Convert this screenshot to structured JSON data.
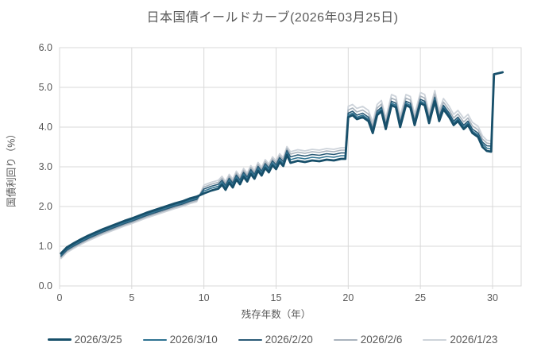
{
  "colors": {
    "text": "#595959",
    "grid": "#d9d9d9",
    "background": "#ffffff"
  },
  "chart_data": {
    "type": "line",
    "title": "日本国債イールドカーブ(2026年03月25日)",
    "xlabel": "残存年数（年）",
    "ylabel": "国債利回り（%）",
    "xlim": [
      0,
      32
    ],
    "ylim": [
      0,
      6
    ],
    "x_ticks": [
      0,
      5,
      10,
      15,
      20,
      25,
      30
    ],
    "y_ticks": [
      "0.0",
      "1.0",
      "2.0",
      "3.0",
      "4.0",
      "5.0",
      "6.0"
    ],
    "grid": true,
    "legend_position": "bottom",
    "x": [
      0.1,
      0.5,
      1,
      1.5,
      2,
      2.5,
      3,
      3.5,
      4,
      4.5,
      5,
      5.5,
      6,
      6.5,
      7,
      7.5,
      8,
      8.5,
      9,
      9.5,
      10,
      10.5,
      11,
      11.25,
      11.5,
      11.75,
      12,
      12.25,
      12.5,
      12.75,
      13,
      13.25,
      13.5,
      13.75,
      14,
      14.25,
      14.5,
      14.75,
      15,
      15.25,
      15.5,
      15.75,
      16,
      16.5,
      17,
      17.5,
      18,
      18.5,
      19,
      19.5,
      19.8,
      20,
      20.3,
      20.6,
      21,
      21.4,
      21.7,
      22,
      22.3,
      22.6,
      23,
      23.3,
      23.6,
      24,
      24.3,
      24.6,
      25,
      25.3,
      25.6,
      26,
      26.3,
      26.6,
      27,
      27.3,
      27.6,
      28,
      28.3,
      28.6,
      29,
      29.3,
      29.6,
      29.9,
      30.1,
      30.7
    ],
    "series": [
      {
        "name": "2026/3/25",
        "color": "#174f6a",
        "width": 2.8,
        "values": [
          0.82,
          0.97,
          1.08,
          1.18,
          1.27,
          1.35,
          1.43,
          1.5,
          1.57,
          1.64,
          1.7,
          1.77,
          1.84,
          1.9,
          1.96,
          2.02,
          2.08,
          2.13,
          2.2,
          2.25,
          2.33,
          2.4,
          2.45,
          2.55,
          2.42,
          2.6,
          2.48,
          2.68,
          2.56,
          2.75,
          2.63,
          2.82,
          2.7,
          2.9,
          2.78,
          2.97,
          2.86,
          3.04,
          2.94,
          3.12,
          3.02,
          3.3,
          3.1,
          3.15,
          3.12,
          3.16,
          3.14,
          3.18,
          3.16,
          3.2,
          3.2,
          4.25,
          4.3,
          4.2,
          4.25,
          4.15,
          3.85,
          4.3,
          4.4,
          3.95,
          4.55,
          4.5,
          4.0,
          4.55,
          4.5,
          4.05,
          4.6,
          4.55,
          4.1,
          4.65,
          4.15,
          4.45,
          4.25,
          4.05,
          4.15,
          3.95,
          4.05,
          3.85,
          3.75,
          3.5,
          3.4,
          3.38,
          5.33,
          5.38
        ]
      },
      {
        "name": "2026/3/10",
        "color": "#2f7392",
        "width": 1.6,
        "values": [
          0.78,
          0.93,
          1.04,
          1.14,
          1.23,
          1.31,
          1.39,
          1.46,
          1.53,
          1.6,
          1.66,
          1.73,
          1.8,
          1.86,
          1.92,
          1.98,
          2.04,
          2.09,
          2.16,
          2.21,
          2.39,
          2.46,
          2.51,
          2.61,
          2.48,
          2.66,
          2.54,
          2.74,
          2.62,
          2.81,
          2.69,
          2.88,
          2.76,
          2.96,
          2.84,
          3.03,
          2.92,
          3.1,
          3.0,
          3.18,
          3.08,
          3.36,
          3.18,
          3.23,
          3.2,
          3.24,
          3.22,
          3.26,
          3.24,
          3.28,
          3.28,
          4.3,
          4.35,
          4.25,
          4.3,
          4.2,
          3.9,
          4.35,
          4.45,
          4.0,
          4.6,
          4.55,
          4.05,
          4.6,
          4.55,
          4.1,
          4.65,
          4.6,
          4.15,
          4.7,
          4.2,
          4.5,
          4.3,
          4.1,
          4.2,
          4.0,
          4.1,
          3.9,
          3.8,
          3.57,
          3.47,
          3.45,
          null,
          null
        ]
      },
      {
        "name": "2026/2/20",
        "color": "#2b5b77",
        "width": 1.6,
        "values": [
          0.75,
          0.9,
          1.01,
          1.11,
          1.2,
          1.28,
          1.36,
          1.43,
          1.5,
          1.57,
          1.63,
          1.7,
          1.77,
          1.83,
          1.89,
          1.95,
          2.01,
          2.06,
          2.13,
          2.18,
          2.44,
          2.51,
          2.56,
          2.66,
          2.53,
          2.71,
          2.59,
          2.79,
          2.67,
          2.86,
          2.74,
          2.93,
          2.81,
          3.01,
          2.89,
          3.08,
          2.97,
          3.15,
          3.05,
          3.23,
          3.13,
          3.41,
          3.25,
          3.3,
          3.27,
          3.31,
          3.29,
          3.33,
          3.31,
          3.35,
          3.35,
          4.35,
          4.4,
          4.3,
          4.35,
          4.25,
          3.95,
          4.4,
          4.5,
          4.05,
          4.65,
          4.6,
          4.1,
          4.65,
          4.6,
          4.15,
          4.7,
          4.65,
          4.2,
          4.75,
          4.25,
          4.55,
          4.35,
          4.15,
          4.25,
          4.05,
          4.15,
          3.95,
          3.85,
          3.62,
          3.53,
          3.52,
          null,
          null
        ]
      },
      {
        "name": "2026/2/6",
        "color": "#a9b3bd",
        "width": 1.6,
        "values": [
          0.72,
          0.87,
          0.98,
          1.08,
          1.17,
          1.25,
          1.33,
          1.4,
          1.47,
          1.54,
          1.6,
          1.67,
          1.74,
          1.8,
          1.86,
          1.92,
          1.98,
          2.03,
          2.1,
          2.15,
          2.49,
          2.56,
          2.61,
          2.71,
          2.58,
          2.76,
          2.64,
          2.84,
          2.72,
          2.91,
          2.79,
          2.98,
          2.86,
          3.06,
          2.94,
          3.13,
          3.02,
          3.2,
          3.1,
          3.28,
          3.18,
          3.46,
          3.32,
          3.37,
          3.34,
          3.38,
          3.36,
          3.4,
          3.38,
          3.42,
          3.42,
          4.43,
          4.48,
          4.38,
          4.43,
          4.33,
          4.03,
          4.48,
          4.58,
          4.13,
          4.73,
          4.68,
          4.18,
          4.73,
          4.68,
          4.23,
          4.78,
          4.73,
          4.28,
          4.83,
          4.33,
          4.63,
          4.43,
          4.23,
          4.33,
          4.13,
          4.23,
          4.03,
          3.93,
          3.7,
          3.6,
          3.58,
          null,
          null
        ]
      },
      {
        "name": "2026/1/23",
        "color": "#cdd3da",
        "width": 1.8,
        "values": [
          0.69,
          0.84,
          0.95,
          1.05,
          1.14,
          1.22,
          1.3,
          1.37,
          1.44,
          1.51,
          1.57,
          1.64,
          1.71,
          1.77,
          1.83,
          1.89,
          1.95,
          2.0,
          2.07,
          2.12,
          2.54,
          2.61,
          2.66,
          2.76,
          2.63,
          2.81,
          2.69,
          2.89,
          2.77,
          2.96,
          2.84,
          3.03,
          2.91,
          3.11,
          2.99,
          3.18,
          3.07,
          3.25,
          3.15,
          3.33,
          3.23,
          3.51,
          3.38,
          3.43,
          3.4,
          3.44,
          3.42,
          3.46,
          3.44,
          3.48,
          3.48,
          4.52,
          4.57,
          4.47,
          4.52,
          4.42,
          4.12,
          4.57,
          4.67,
          4.22,
          4.82,
          4.77,
          4.27,
          4.82,
          4.77,
          4.32,
          4.87,
          4.82,
          4.37,
          4.92,
          4.42,
          4.72,
          4.52,
          4.32,
          4.42,
          4.22,
          4.32,
          4.12,
          4.02,
          3.78,
          3.67,
          3.65,
          null,
          null
        ]
      }
    ]
  }
}
